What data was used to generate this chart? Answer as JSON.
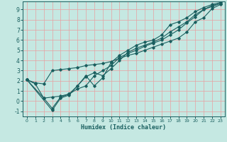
{
  "title": "",
  "xlabel": "Humidex (Indice chaleur)",
  "xlim": [
    -0.5,
    23.5
  ],
  "ylim": [
    -1.5,
    9.8
  ],
  "xticks": [
    0,
    1,
    2,
    3,
    4,
    5,
    6,
    7,
    8,
    9,
    10,
    11,
    12,
    13,
    14,
    15,
    16,
    17,
    18,
    19,
    20,
    21,
    22,
    23
  ],
  "yticks": [
    -1,
    0,
    1,
    2,
    3,
    4,
    5,
    6,
    7,
    8,
    9
  ],
  "bg_color": "#c5e8e2",
  "line_color": "#1a5f5f",
  "grid_color": "#e8a0a0",
  "lines": [
    {
      "x": [
        0,
        1,
        2,
        3,
        4,
        5,
        6,
        7,
        8,
        9,
        10,
        11,
        12,
        13,
        14,
        15,
        16,
        17,
        18,
        19,
        20,
        21,
        22,
        23
      ],
      "y": [
        2.1,
        1.8,
        1.7,
        3.0,
        3.1,
        3.2,
        3.3,
        3.5,
        3.6,
        3.7,
        3.9,
        4.2,
        4.5,
        4.7,
        5.0,
        5.3,
        5.6,
        5.9,
        6.2,
        6.8,
        7.8,
        8.2,
        9.1,
        9.5
      ]
    },
    {
      "x": [
        0,
        1,
        2,
        3,
        4,
        5,
        6,
        7,
        8,
        9,
        10,
        11,
        12,
        13,
        14,
        15,
        16,
        17,
        18,
        19,
        20,
        21,
        22,
        23
      ],
      "y": [
        2.1,
        1.7,
        0.3,
        0.4,
        0.5,
        0.7,
        1.2,
        1.5,
        2.5,
        3.0,
        3.5,
        4.3,
        4.7,
        5.0,
        5.4,
        5.7,
        6.0,
        6.5,
        7.0,
        7.7,
        8.3,
        9.0,
        9.3,
        9.6
      ]
    },
    {
      "x": [
        0,
        2,
        3,
        4,
        5,
        6,
        7,
        8,
        9,
        10,
        11,
        12,
        13,
        14,
        15,
        16,
        17,
        18,
        19,
        20,
        21,
        22,
        23
      ],
      "y": [
        2.1,
        0.3,
        -0.7,
        0.4,
        0.7,
        1.5,
        2.4,
        2.8,
        2.5,
        3.2,
        4.0,
        4.8,
        5.2,
        5.5,
        5.8,
        6.2,
        6.8,
        7.3,
        7.8,
        8.5,
        9.0,
        9.4,
        9.6
      ]
    },
    {
      "x": [
        0,
        3,
        4,
        5,
        6,
        7,
        8,
        9,
        10,
        11,
        12,
        13,
        14,
        15,
        16,
        17,
        18,
        19,
        20,
        21,
        22,
        23
      ],
      "y": [
        2.1,
        -0.9,
        0.3,
        0.6,
        1.5,
        2.5,
        1.5,
        2.3,
        3.8,
        4.5,
        5.0,
        5.5,
        5.8,
        6.0,
        6.5,
        7.5,
        7.8,
        8.2,
        8.8,
        9.2,
        9.5,
        9.7
      ]
    }
  ]
}
